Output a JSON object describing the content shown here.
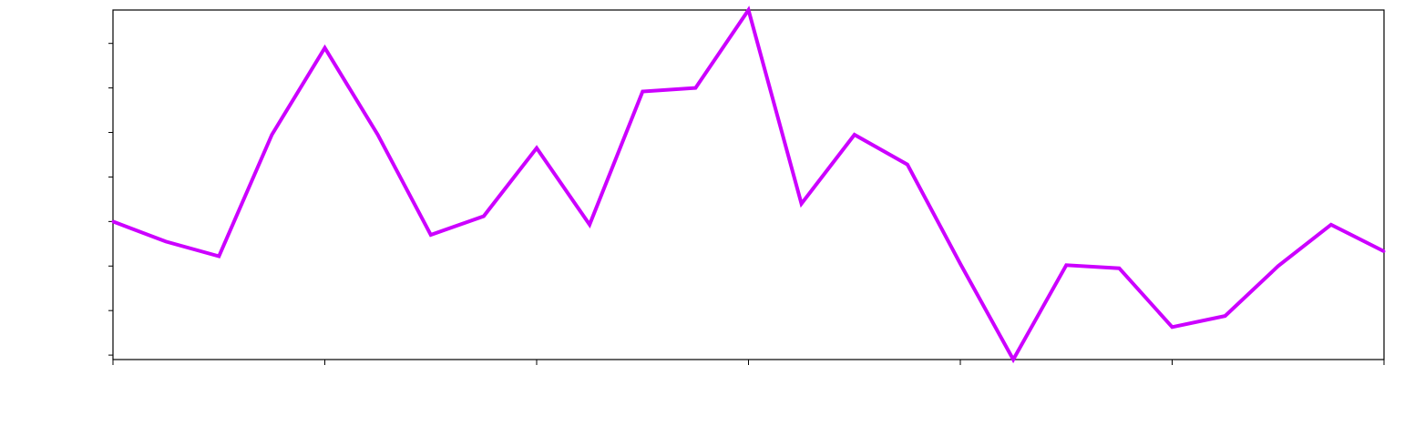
{
  "chart_data": {
    "type": "line",
    "title": "",
    "xlabel": "",
    "ylabel": "",
    "x": [
      0,
      1,
      2,
      3,
      4,
      5,
      6,
      7,
      8,
      9,
      10,
      11,
      12,
      13,
      14,
      15,
      16,
      17,
      18,
      19,
      20,
      21,
      22,
      23,
      24
    ],
    "xlim": [
      0,
      24
    ],
    "ylim": [
      -0.1,
      7.75
    ],
    "x_ticks": [
      0,
      4,
      8,
      12,
      16,
      20,
      24
    ],
    "y_ticks": [
      0,
      1,
      2,
      3,
      4,
      5,
      6,
      7
    ],
    "x_tick_labels_visible": false,
    "y_tick_labels_visible": false,
    "grid": false,
    "series": [
      {
        "color": "#cc00ff",
        "values": [
          3.0,
          2.55,
          2.22,
          4.95,
          6.9,
          4.95,
          2.7,
          3.12,
          4.65,
          2.93,
          5.92,
          6.0,
          7.75,
          3.4,
          4.95,
          4.28,
          2.05,
          -0.1,
          2.02,
          1.95,
          0.63,
          0.88,
          2.0,
          2.93,
          2.33
        ]
      }
    ]
  }
}
